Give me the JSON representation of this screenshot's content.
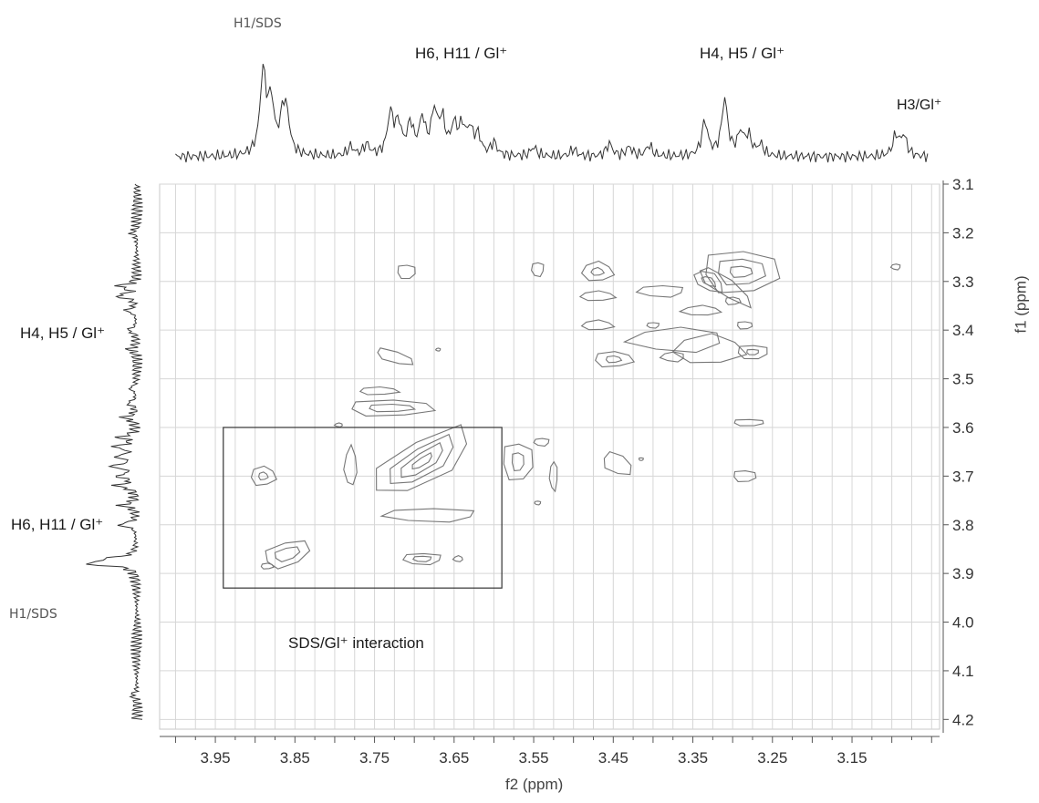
{
  "chart_data": {
    "type": "contour",
    "subtype": "2D NMR spectrum with 1D projections",
    "x_axis": {
      "label": "f2 (ppm)",
      "min": 4.02,
      "max": 3.04,
      "reversed": true,
      "ticks": [
        3.95,
        3.85,
        3.75,
        3.65,
        3.55,
        3.45,
        3.35,
        3.25,
        3.15
      ],
      "tick_labels": [
        "3.95",
        "3.85",
        "3.75",
        "3.65",
        "3.55",
        "3.45",
        "3.35",
        "3.25",
        "3.15"
      ]
    },
    "y_axis": {
      "label": "f1 (ppm)",
      "min": 3.1,
      "max": 4.22,
      "position": "right",
      "reversed": true,
      "ticks": [
        3.1,
        3.2,
        3.3,
        3.4,
        3.5,
        3.6,
        3.7,
        3.8,
        3.9,
        4.0,
        4.1,
        4.2
      ],
      "tick_labels": [
        "3.1",
        "3.2",
        "3.3",
        "3.4",
        "3.5",
        "3.6",
        "3.7",
        "3.8",
        "3.9",
        "4.0",
        "4.1",
        "4.2"
      ]
    },
    "grid": true,
    "top_projection_peaks": [
      {
        "label": "H1/SDS",
        "ppm": 3.88
      },
      {
        "label": "H6, H11 / Gl⁺",
        "ppm": 3.68
      },
      {
        "label": "H4, H5 / Gl⁺",
        "ppm": 3.31
      },
      {
        "label": "H3/Gl⁺",
        "ppm": 3.08
      }
    ],
    "left_projection_peaks": [
      {
        "label": "H4, H5 / Gl⁺",
        "ppm": 3.4
      },
      {
        "label": "H6, H11 / Gl⁺",
        "ppm": 3.8
      },
      {
        "label": "H1/SDS",
        "ppm": 3.88
      }
    ],
    "cross_peaks": [
      {
        "f2": 3.69,
        "f1": 3.67,
        "rings": [
          [
            0.07,
            0.045,
            -0.5
          ],
          [
            0.05,
            0.03,
            -0.55
          ],
          [
            0.034,
            0.018,
            -0.6
          ],
          [
            0.016,
            0.008,
            -0.6
          ]
        ]
      },
      {
        "f2": 3.73,
        "f1": 3.56,
        "rings": [
          [
            0.055,
            0.017,
            0
          ],
          [
            0.03,
            0.008,
            0
          ]
        ]
      },
      {
        "f2": 3.68,
        "f1": 3.78,
        "rings": [
          [
            0.06,
            0.014,
            0
          ]
        ]
      },
      {
        "f2": 3.78,
        "f1": 3.68,
        "rings": [
          [
            0.008,
            0.04,
            0
          ]
        ]
      },
      {
        "f2": 3.57,
        "f1": 3.67,
        "rings": [
          [
            0.02,
            0.04,
            0
          ],
          [
            0.008,
            0.02,
            0
          ]
        ]
      },
      {
        "f2": 3.86,
        "f1": 3.86,
        "rings": [
          [
            0.03,
            0.025,
            -0.3
          ],
          [
            0.017,
            0.013,
            -0.3
          ]
        ]
      },
      {
        "f2": 3.885,
        "f1": 3.885,
        "rings": [
          [
            0.008,
            0.006,
            0
          ]
        ]
      },
      {
        "f2": 3.89,
        "f1": 3.7,
        "rings": [
          [
            0.016,
            0.02,
            0
          ],
          [
            0.006,
            0.008,
            0
          ]
        ]
      },
      {
        "f2": 3.69,
        "f1": 3.87,
        "rings": [
          [
            0.025,
            0.012,
            0
          ],
          [
            0.012,
            0.006,
            0
          ]
        ]
      },
      {
        "f2": 3.645,
        "f1": 3.87,
        "rings": [
          [
            0.006,
            0.006,
            0
          ]
        ]
      },
      {
        "f2": 3.29,
        "f1": 3.28,
        "rings": [
          [
            0.05,
            0.045,
            0
          ],
          [
            0.032,
            0.028,
            0
          ],
          [
            0.015,
            0.012,
            0
          ]
        ]
      },
      {
        "f2": 3.33,
        "f1": 3.3,
        "rings": [
          [
            0.02,
            0.018,
            0.5
          ],
          [
            0.01,
            0.008,
            0.5
          ]
        ]
      },
      {
        "f2": 3.31,
        "f1": 3.31,
        "rings": [
          [
            0.04,
            0.018,
            0.6
          ]
        ]
      },
      {
        "f2": 3.39,
        "f1": 3.32,
        "rings": [
          [
            0.03,
            0.012,
            0
          ]
        ]
      },
      {
        "f2": 3.34,
        "f1": 3.36,
        "rings": [
          [
            0.025,
            0.01,
            0
          ]
        ]
      },
      {
        "f2": 3.3,
        "f1": 3.34,
        "rings": [
          [
            0.01,
            0.008,
            0
          ]
        ]
      },
      {
        "f2": 3.47,
        "f1": 3.28,
        "rings": [
          [
            0.02,
            0.02,
            0
          ],
          [
            0.008,
            0.008,
            0
          ]
        ]
      },
      {
        "f2": 3.47,
        "f1": 3.33,
        "rings": [
          [
            0.022,
            0.01,
            0
          ]
        ]
      },
      {
        "f2": 3.47,
        "f1": 3.39,
        "rings": [
          [
            0.02,
            0.01,
            0
          ]
        ]
      },
      {
        "f2": 3.4,
        "f1": 3.39,
        "rings": [
          [
            0.008,
            0.006,
            0
          ]
        ]
      },
      {
        "f2": 3.45,
        "f1": 3.46,
        "rings": [
          [
            0.025,
            0.016,
            0
          ],
          [
            0.01,
            0.007,
            0
          ]
        ]
      },
      {
        "f2": 3.375,
        "f1": 3.455,
        "rings": [
          [
            0.015,
            0.01,
            0
          ]
        ]
      },
      {
        "f2": 3.37,
        "f1": 3.42,
        "rings": [
          [
            0.06,
            0.025,
            0
          ]
        ]
      },
      {
        "f2": 3.33,
        "f1": 3.44,
        "rings": [
          [
            0.045,
            0.03,
            0
          ]
        ]
      },
      {
        "f2": 3.275,
        "f1": 3.445,
        "rings": [
          [
            0.02,
            0.015,
            0
          ],
          [
            0.008,
            0.006,
            0
          ]
        ]
      },
      {
        "f2": 3.285,
        "f1": 3.39,
        "rings": [
          [
            0.01,
            0.008,
            0
          ]
        ]
      },
      {
        "f2": 3.71,
        "f1": 3.28,
        "rings": [
          [
            0.012,
            0.015,
            0
          ]
        ]
      },
      {
        "f2": 3.545,
        "f1": 3.275,
        "rings": [
          [
            0.008,
            0.015,
            0
          ]
        ]
      },
      {
        "f2": 3.095,
        "f1": 3.27,
        "rings": [
          [
            0.006,
            0.006,
            0
          ]
        ]
      },
      {
        "f2": 3.725,
        "f1": 3.455,
        "rings": [
          [
            0.025,
            0.012,
            0.3
          ]
        ]
      },
      {
        "f2": 3.67,
        "f1": 3.44,
        "rings": [
          [
            0.003,
            0.003,
            0
          ]
        ]
      },
      {
        "f2": 3.54,
        "f1": 3.63,
        "rings": [
          [
            0.01,
            0.008,
            0
          ]
        ]
      },
      {
        "f2": 3.545,
        "f1": 3.755,
        "rings": [
          [
            0.004,
            0.004,
            0
          ]
        ]
      },
      {
        "f2": 3.525,
        "f1": 3.7,
        "rings": [
          [
            0.005,
            0.03,
            0
          ]
        ]
      },
      {
        "f2": 3.445,
        "f1": 3.675,
        "rings": [
          [
            0.02,
            0.02,
            0.5
          ]
        ]
      },
      {
        "f2": 3.415,
        "f1": 3.665,
        "rings": [
          [
            0.003,
            0.003,
            0
          ]
        ]
      },
      {
        "f2": 3.28,
        "f1": 3.59,
        "rings": [
          [
            0.02,
            0.007,
            0
          ]
        ]
      },
      {
        "f2": 3.285,
        "f1": 3.7,
        "rings": [
          [
            0.015,
            0.012,
            0
          ]
        ]
      },
      {
        "f2": 3.795,
        "f1": 3.595,
        "rings": [
          [
            0.005,
            0.004,
            0
          ]
        ]
      },
      {
        "f2": 3.745,
        "f1": 3.525,
        "rings": [
          [
            0.025,
            0.008,
            0
          ]
        ]
      }
    ],
    "highlight_box": {
      "f2_min": 3.59,
      "f2_max": 3.94,
      "f1_min": 3.6,
      "f1_max": 3.93,
      "label": "SDS/Gl⁺ interaction"
    }
  }
}
